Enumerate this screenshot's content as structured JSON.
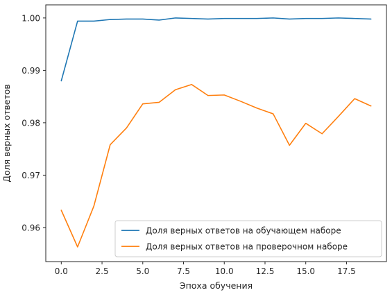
{
  "chart_data": {
    "type": "line",
    "title": "",
    "xlabel": "Эпоха обучения",
    "ylabel": "Доля верных ответов",
    "xlim": [
      -0.95,
      19.95
    ],
    "ylim": [
      0.9535,
      1.0025
    ],
    "x_ticks": [
      0.0,
      2.5,
      5.0,
      7.5,
      10.0,
      12.5,
      15.0,
      17.5
    ],
    "x_tick_labels": [
      "0.0",
      "2.5",
      "5.0",
      "7.5",
      "10.0",
      "12.5",
      "15.0",
      "17.5"
    ],
    "y_ticks": [
      0.96,
      0.97,
      0.98,
      0.99,
      1.0
    ],
    "y_tick_labels": [
      "0.96",
      "0.97",
      "0.98",
      "0.99",
      "1.00"
    ],
    "grid": false,
    "legend_position": "lower-right",
    "x": [
      0,
      1,
      2,
      3,
      4,
      5,
      6,
      7,
      8,
      9,
      10,
      11,
      12,
      13,
      14,
      15,
      16,
      17,
      18,
      19
    ],
    "series": [
      {
        "name": "Доля верных ответов на обучающем наборе",
        "color": "#1f77b4",
        "values": [
          0.988,
          0.9994,
          0.9994,
          0.9997,
          0.9998,
          0.9998,
          0.9996,
          1.0,
          0.9999,
          0.9998,
          0.9999,
          0.9999,
          0.9999,
          1.0,
          0.9998,
          0.9999,
          0.9999,
          1.0,
          0.9999,
          0.9998
        ]
      },
      {
        "name": "Доля верных ответов на проверочном наборе",
        "color": "#ff7f0e",
        "values": [
          0.9633,
          0.9563,
          0.9641,
          0.9758,
          0.979,
          0.9836,
          0.9839,
          0.9863,
          0.9873,
          0.9852,
          0.9853,
          0.9841,
          0.9828,
          0.9817,
          0.9757,
          0.9799,
          0.9779,
          0.9812,
          0.9846,
          0.9832
        ]
      }
    ]
  }
}
